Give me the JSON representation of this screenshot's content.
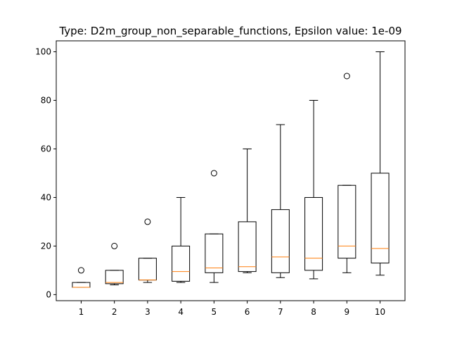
{
  "chart_data": {
    "type": "box",
    "title": "Type: D2m_group_non_separable_functions, Epsilon value: 1e-09",
    "xlabel": "",
    "ylabel": "",
    "categories": [
      "1",
      "2",
      "3",
      "4",
      "5",
      "6",
      "7",
      "8",
      "9",
      "10"
    ],
    "ylim": [
      -2.5,
      104.5
    ],
    "yticks": [
      0,
      20,
      40,
      60,
      80,
      100
    ],
    "grid": false,
    "box_color": "#000000",
    "median_color": "#ff7f0e",
    "boxes": [
      {
        "whislo": 3,
        "q1": 3,
        "med": 3,
        "q3": 5,
        "whishi": 5,
        "fliers": [
          10
        ]
      },
      {
        "whislo": 4,
        "q1": 4.5,
        "med": 5,
        "q3": 10,
        "whishi": 10,
        "fliers": [
          20
        ]
      },
      {
        "whislo": 5,
        "q1": 6,
        "med": 6,
        "q3": 15,
        "whishi": 15,
        "fliers": [
          30
        ]
      },
      {
        "whislo": 5,
        "q1": 5.5,
        "med": 9.5,
        "q3": 20,
        "whishi": 40,
        "fliers": []
      },
      {
        "whislo": 5,
        "q1": 9,
        "med": 11,
        "q3": 25,
        "whishi": 25,
        "fliers": [
          50
        ]
      },
      {
        "whislo": 9,
        "q1": 9.5,
        "med": 11.5,
        "q3": 30,
        "whishi": 60,
        "fliers": []
      },
      {
        "whislo": 7,
        "q1": 9,
        "med": 15.5,
        "q3": 35,
        "whishi": 70,
        "fliers": []
      },
      {
        "whislo": 6.5,
        "q1": 10,
        "med": 15,
        "q3": 40,
        "whishi": 80,
        "fliers": []
      },
      {
        "whislo": 9,
        "q1": 15,
        "med": 20,
        "q3": 45,
        "whishi": 45,
        "fliers": [
          90
        ]
      },
      {
        "whislo": 8,
        "q1": 13,
        "med": 19,
        "q3": 50,
        "whishi": 100,
        "fliers": []
      }
    ]
  }
}
